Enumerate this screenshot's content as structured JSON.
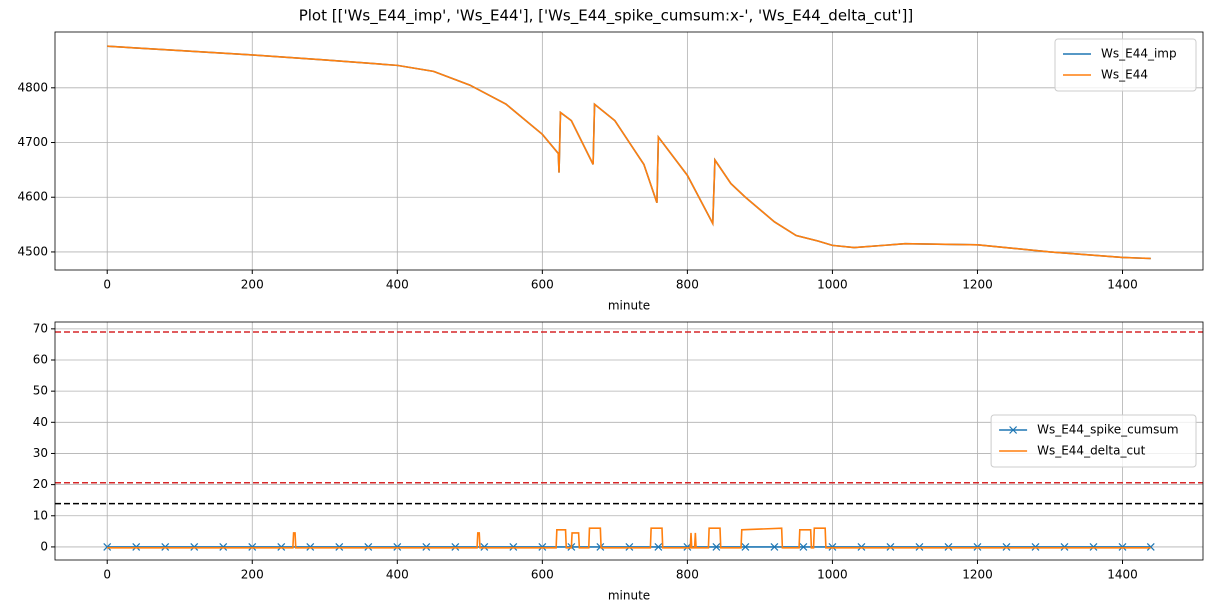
{
  "title": "Plot [['Ws_E44_imp', 'Ws_E44'], ['Ws_E44_spike_cumsum:x-', 'Ws_E44_delta_cut']]",
  "chart_data": [
    {
      "type": "line",
      "xlabel": "minute",
      "xlim": [
        -72,
        1511
      ],
      "ylim": [
        4467,
        4902
      ],
      "xticks": [
        0,
        200,
        400,
        600,
        800,
        1000,
        1200,
        1400
      ],
      "yticks": [
        4500,
        4600,
        4700,
        4800
      ],
      "grid": true,
      "legend": "upper right",
      "series": [
        {
          "name": "Ws_E44_imp",
          "color": "#1f77b4",
          "x": [
            0,
            100,
            200,
            300,
            400,
            450,
            500,
            550,
            600,
            622,
            623,
            625,
            640,
            670,
            672,
            700,
            740,
            758,
            760,
            800,
            835,
            838,
            860,
            880,
            920,
            950,
            980,
            1000,
            1030,
            1100,
            1200,
            1300,
            1400,
            1439
          ],
          "values": [
            4876,
            4868,
            4860,
            4851,
            4841,
            4830,
            4805,
            4770,
            4715,
            4680,
            4645,
            4755,
            4740,
            4660,
            4770,
            4740,
            4660,
            4590,
            4710,
            4640,
            4552,
            4668,
            4625,
            4600,
            4555,
            4530,
            4520,
            4512,
            4508,
            4515,
            4513,
            4500,
            4490,
            4488
          ]
        },
        {
          "name": "Ws_E44",
          "color": "#ff7f0e",
          "x": [
            0,
            100,
            200,
            300,
            400,
            450,
            500,
            550,
            600,
            622,
            623,
            625,
            640,
            670,
            672,
            700,
            740,
            758,
            760,
            800,
            835,
            838,
            860,
            880,
            920,
            950,
            980,
            1000,
            1030,
            1100,
            1200,
            1300,
            1400,
            1439
          ],
          "values": [
            4876,
            4868,
            4860,
            4851,
            4841,
            4830,
            4805,
            4770,
            4715,
            4680,
            4645,
            4755,
            4740,
            4660,
            4770,
            4740,
            4660,
            4590,
            4710,
            4640,
            4552,
            4668,
            4625,
            4600,
            4555,
            4530,
            4520,
            4512,
            4508,
            4515,
            4513,
            4500,
            4490,
            4488
          ]
        }
      ]
    },
    {
      "type": "line",
      "xlabel": "minute",
      "xlim": [
        -72,
        1511
      ],
      "ylim": [
        -4.2,
        72.2
      ],
      "xticks": [
        0,
        200,
        400,
        600,
        800,
        1000,
        1200,
        1400
      ],
      "yticks": [
        0,
        10,
        20,
        30,
        40,
        50,
        60,
        70
      ],
      "grid": true,
      "legend": "center right",
      "hlines": [
        {
          "value": 69,
          "color": "#d62728"
        },
        {
          "value": 20.6,
          "color": "#d62728"
        },
        {
          "value": 13.9,
          "color": "#000000"
        }
      ],
      "series": [
        {
          "name": "Ws_E44_spike_cumsum",
          "color": "#1f77b4",
          "marker": "x",
          "x": [
            0,
            40,
            80,
            120,
            160,
            200,
            240,
            280,
            320,
            360,
            400,
            440,
            480,
            520,
            560,
            600,
            640,
            680,
            720,
            760,
            800,
            840,
            880,
            920,
            960,
            1000,
            1040,
            1080,
            1120,
            1160,
            1200,
            1240,
            1280,
            1320,
            1360,
            1400,
            1439
          ],
          "values": [
            0,
            0,
            0,
            0,
            0,
            0,
            0,
            0,
            0,
            0,
            0,
            0,
            0,
            0,
            0,
            0,
            0,
            0,
            0,
            0,
            0,
            0,
            0,
            0,
            0,
            0,
            0,
            0,
            0,
            0,
            0,
            0,
            0,
            0,
            0,
            0,
            0
          ]
        },
        {
          "name": "Ws_E44_delta_cut",
          "color": "#ff7f0e",
          "x": [
            0,
            256,
            257,
            259,
            260,
            510,
            511,
            513,
            514,
            619,
            620,
            632,
            633,
            640,
            641,
            650,
            651,
            664,
            665,
            680,
            681,
            749,
            750,
            765,
            766,
            804,
            805,
            806,
            810,
            811,
            812,
            829,
            830,
            845,
            846,
            874,
            875,
            930,
            931,
            954,
            955,
            970,
            971,
            974,
            975,
            990,
            991,
            1439
          ],
          "values": [
            -0.3,
            -0.3,
            4.5,
            4.5,
            -0.3,
            -0.3,
            4.5,
            4.5,
            -0.3,
            -0.3,
            5.5,
            5.5,
            -0.3,
            -0.3,
            4.5,
            4.5,
            -0.3,
            -0.3,
            6,
            6,
            -0.3,
            -0.3,
            6,
            6,
            -0.3,
            -0.3,
            4.5,
            -0.3,
            -0.3,
            4.5,
            -0.3,
            -0.3,
            6,
            6,
            -0.3,
            -0.3,
            5.5,
            6,
            -0.3,
            -0.3,
            5.5,
            5.5,
            -0.3,
            -0.3,
            6,
            6,
            -0.3,
            -0.3
          ]
        }
      ]
    }
  ]
}
